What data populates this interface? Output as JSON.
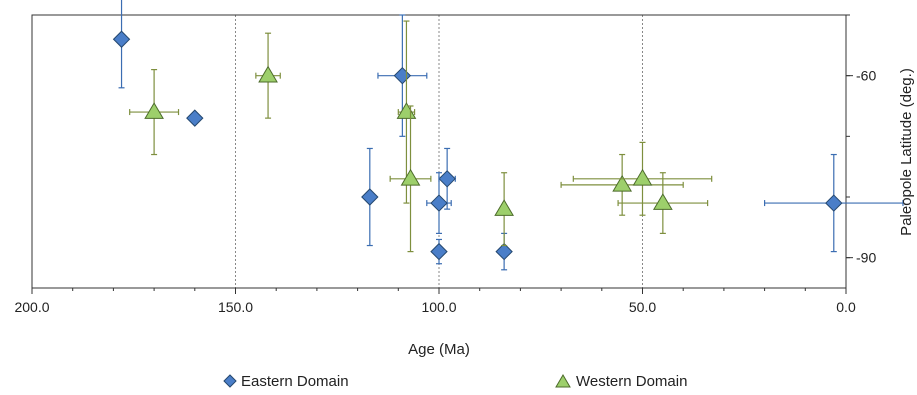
{
  "chart_data": {
    "type": "scatter",
    "xlabel": "Age (Ma)",
    "ylabel": "Paleopole Latitude (deg.)",
    "xlim": [
      200,
      0
    ],
    "ylim": [
      -95,
      -50
    ],
    "x_reversed": true,
    "y_axis_side": "right",
    "x_ticks": [
      200,
      150,
      100,
      50,
      0
    ],
    "x_tick_labels": [
      "200.0",
      "150.0",
      "100.0",
      "50.0",
      "0.0"
    ],
    "y_ticks": [
      -60,
      -90
    ],
    "y_tick_labels": [
      "-60",
      "-90"
    ],
    "vertical_gridlines_at": [
      150,
      100,
      50
    ],
    "grid": "dotted vertical",
    "legend_position": "bottom",
    "colors": {
      "eastern_fill": "#4a7ec8",
      "eastern_stroke": "#24476e",
      "eastern_error": "#3b6db2",
      "western_fill": "#9dcf6b",
      "western_stroke": "#4c6b2a",
      "western_error": "#7e8f3e"
    },
    "series": [
      {
        "name": "Eastern Domain",
        "marker": "diamond",
        "points": [
          {
            "x": 178,
            "y": -54,
            "xerr": 1,
            "yerr": 8
          },
          {
            "x": 160,
            "y": -67,
            "xerr": 1,
            "yerr": 0
          },
          {
            "x": 109,
            "y": -60,
            "xerr": 6,
            "yerr": 10
          },
          {
            "x": 117,
            "y": -80,
            "xerr": 0,
            "yerr": 8
          },
          {
            "x": 98,
            "y": -77,
            "xerr": 2,
            "yerr": 5
          },
          {
            "x": 100,
            "y": -81,
            "xerr": 3,
            "yerr": 5
          },
          {
            "x": 100,
            "y": -89,
            "xerr": 0,
            "yerr": 2
          },
          {
            "x": 84,
            "y": -89,
            "xerr": 0,
            "yerr": 3
          },
          {
            "x": 3,
            "y": -81,
            "xerr": 17,
            "yerr": 8
          }
        ]
      },
      {
        "name": "Western Domain",
        "marker": "triangle",
        "points": [
          {
            "x": 170,
            "y": -66,
            "xerr": 6,
            "yerr": 7
          },
          {
            "x": 142,
            "y": -60,
            "xerr": 3,
            "yerr": 7
          },
          {
            "x": 108,
            "y": -66,
            "xerr": 2,
            "yerr": 15
          },
          {
            "x": 107,
            "y": -77,
            "xerr": 5,
            "yerr": 12
          },
          {
            "x": 84,
            "y": -82,
            "xerr": 0,
            "yerr": 6
          },
          {
            "x": 55,
            "y": -78,
            "xerr": 15,
            "yerr": 5
          },
          {
            "x": 50,
            "y": -77,
            "xerr": 17,
            "yerr": 6
          },
          {
            "x": 45,
            "y": -81,
            "xerr": 11,
            "yerr": 5
          }
        ]
      }
    ]
  }
}
